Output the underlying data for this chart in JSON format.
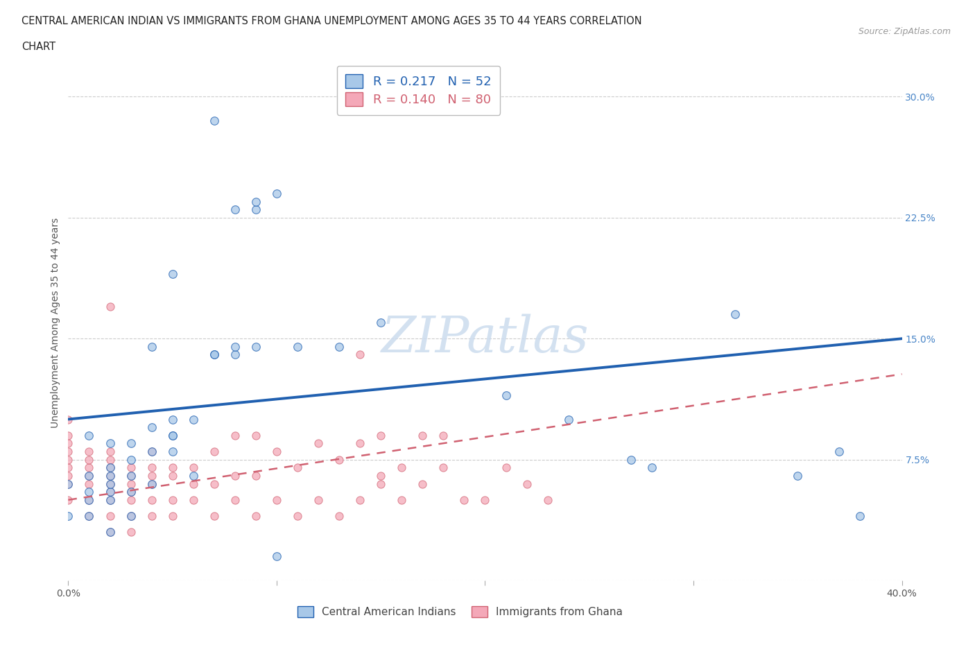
{
  "title_line1": "CENTRAL AMERICAN INDIAN VS IMMIGRANTS FROM GHANA UNEMPLOYMENT AMONG AGES 35 TO 44 YEARS CORRELATION",
  "title_line2": "CHART",
  "source_text": "Source: ZipAtlas.com",
  "ylabel": "Unemployment Among Ages 35 to 44 years",
  "xlim": [
    0.0,
    0.4
  ],
  "ylim": [
    0.0,
    0.32
  ],
  "xticks": [
    0.0,
    0.1,
    0.2,
    0.3,
    0.4
  ],
  "xticklabels": [
    "0.0%",
    "",
    "",
    "",
    "40.0%"
  ],
  "ytick_labels_right": [
    "",
    "7.5%",
    "15.0%",
    "22.5%",
    "30.0%"
  ],
  "yticks": [
    0.0,
    0.075,
    0.15,
    0.225,
    0.3
  ],
  "blue_R": 0.217,
  "blue_N": 52,
  "pink_R": 0.14,
  "pink_N": 80,
  "legend_label_blue": "Central American Indians",
  "legend_label_pink": "Immigrants from Ghana",
  "blue_color": "#a8c8e8",
  "pink_color": "#f4a8b8",
  "blue_line_color": "#2060b0",
  "pink_line_color": "#d06070",
  "watermark_color": "#ccdcee",
  "background_color": "#ffffff",
  "blue_line_x0": 0.0,
  "blue_line_y0": 0.1,
  "blue_line_x1": 0.4,
  "blue_line_y1": 0.15,
  "pink_line_x0": 0.0,
  "pink_line_y0": 0.05,
  "pink_line_x1": 0.4,
  "pink_line_y1": 0.128,
  "blue_x": [
    0.07,
    0.05,
    0.08,
    0.09,
    0.1,
    0.09,
    0.08,
    0.07,
    0.08,
    0.09,
    0.04,
    0.05,
    0.06,
    0.05,
    0.04,
    0.03,
    0.02,
    0.01,
    0.02,
    0.03,
    0.02,
    0.01,
    0.0,
    0.01,
    0.02,
    0.03,
    0.04,
    0.06,
    0.07,
    0.15,
    0.11,
    0.13,
    0.05,
    0.04,
    0.05,
    0.03,
    0.02,
    0.01,
    0.02,
    0.03,
    0.01,
    0.0,
    0.02,
    0.21,
    0.27,
    0.32,
    0.24,
    0.37,
    0.35,
    0.38,
    0.28,
    0.1
  ],
  "blue_y": [
    0.285,
    0.19,
    0.23,
    0.23,
    0.24,
    0.235,
    0.14,
    0.14,
    0.145,
    0.145,
    0.145,
    0.09,
    0.1,
    0.1,
    0.095,
    0.085,
    0.085,
    0.09,
    0.07,
    0.065,
    0.065,
    0.065,
    0.06,
    0.05,
    0.055,
    0.055,
    0.06,
    0.065,
    0.14,
    0.16,
    0.145,
    0.145,
    0.09,
    0.08,
    0.08,
    0.075,
    0.06,
    0.055,
    0.05,
    0.04,
    0.04,
    0.04,
    0.03,
    0.115,
    0.075,
    0.165,
    0.1,
    0.08,
    0.065,
    0.04,
    0.07,
    0.015
  ],
  "pink_x": [
    0.0,
    0.0,
    0.0,
    0.0,
    0.0,
    0.0,
    0.0,
    0.0,
    0.0,
    0.01,
    0.01,
    0.01,
    0.01,
    0.01,
    0.01,
    0.01,
    0.02,
    0.02,
    0.02,
    0.02,
    0.02,
    0.02,
    0.02,
    0.02,
    0.02,
    0.03,
    0.03,
    0.03,
    0.03,
    0.03,
    0.03,
    0.03,
    0.04,
    0.04,
    0.04,
    0.04,
    0.04,
    0.04,
    0.05,
    0.05,
    0.05,
    0.05,
    0.06,
    0.06,
    0.06,
    0.07,
    0.07,
    0.07,
    0.08,
    0.08,
    0.08,
    0.09,
    0.09,
    0.09,
    0.1,
    0.1,
    0.11,
    0.11,
    0.12,
    0.12,
    0.13,
    0.13,
    0.14,
    0.14,
    0.14,
    0.15,
    0.15,
    0.16,
    0.16,
    0.17,
    0.17,
    0.18,
    0.18,
    0.19,
    0.2,
    0.21,
    0.22,
    0.23,
    0.02,
    0.15
  ],
  "pink_y": [
    0.05,
    0.06,
    0.065,
    0.07,
    0.075,
    0.08,
    0.085,
    0.09,
    0.1,
    0.04,
    0.05,
    0.06,
    0.065,
    0.07,
    0.075,
    0.08,
    0.03,
    0.04,
    0.05,
    0.055,
    0.06,
    0.065,
    0.07,
    0.075,
    0.08,
    0.03,
    0.04,
    0.05,
    0.055,
    0.06,
    0.065,
    0.07,
    0.04,
    0.05,
    0.06,
    0.065,
    0.07,
    0.08,
    0.04,
    0.05,
    0.065,
    0.07,
    0.05,
    0.06,
    0.07,
    0.04,
    0.06,
    0.08,
    0.05,
    0.065,
    0.09,
    0.04,
    0.065,
    0.09,
    0.05,
    0.08,
    0.04,
    0.07,
    0.05,
    0.085,
    0.04,
    0.075,
    0.05,
    0.085,
    0.14,
    0.06,
    0.09,
    0.05,
    0.07,
    0.06,
    0.09,
    0.07,
    0.09,
    0.05,
    0.05,
    0.07,
    0.06,
    0.05,
    0.17,
    0.065
  ]
}
